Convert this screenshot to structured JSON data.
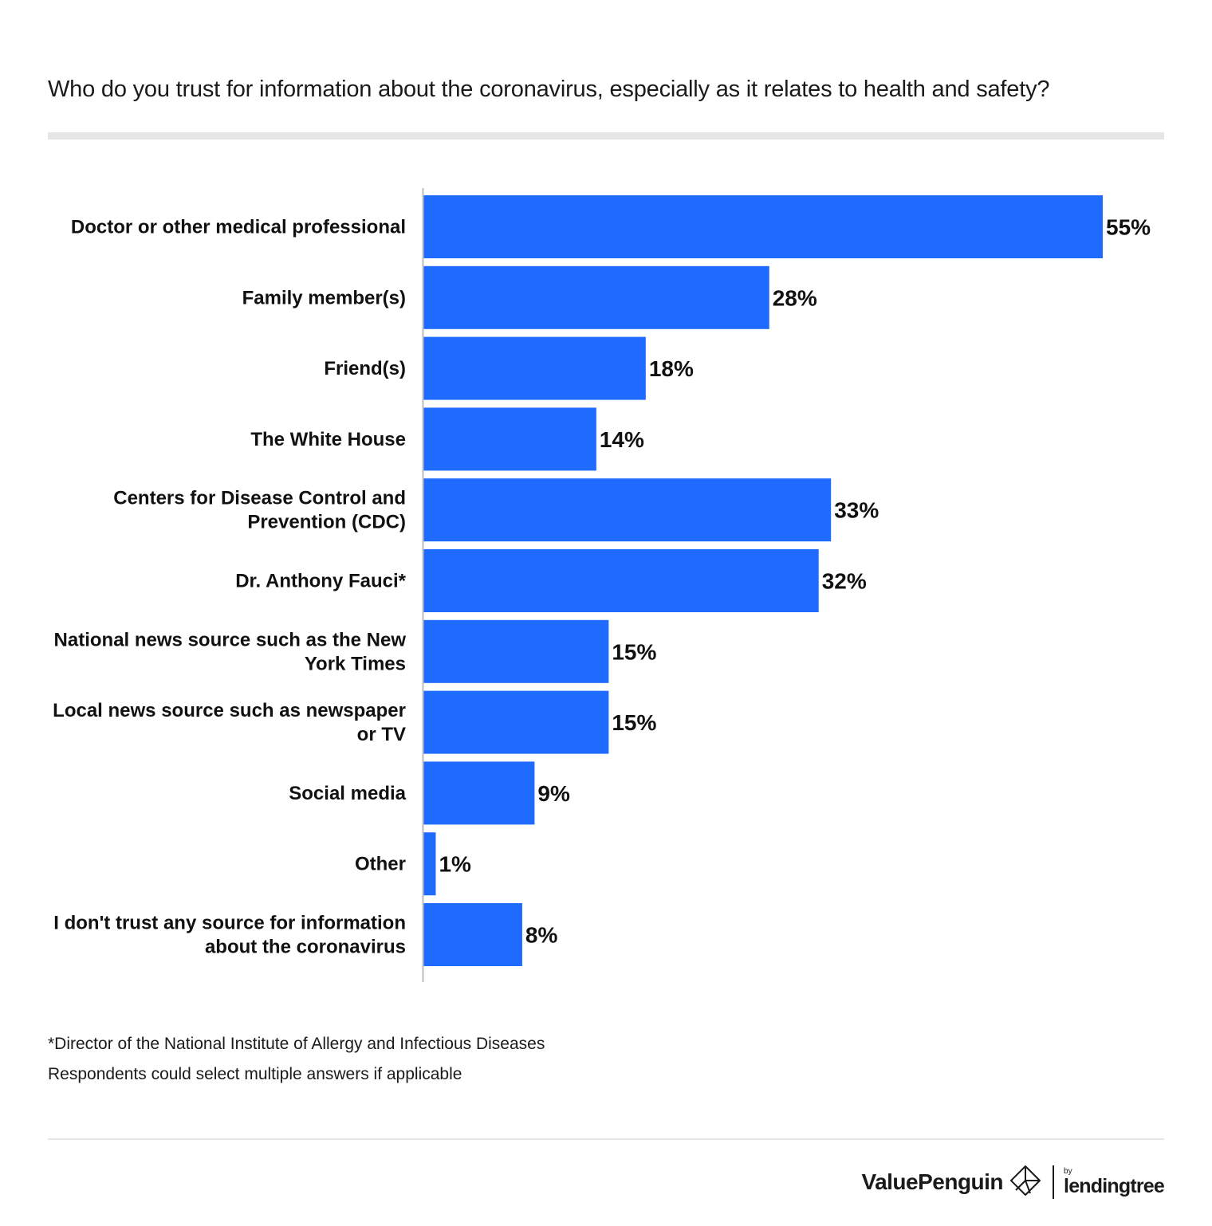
{
  "title": "Who do you trust for information about the coronavirus, especially as it relates to health and safety?",
  "chart_data": {
    "type": "bar",
    "orientation": "horizontal",
    "title": "Who do you trust for information about the coronavirus, especially as it relates to health and safety?",
    "xlabel": "",
    "ylabel": "",
    "xlim": [
      0,
      55
    ],
    "grid": false,
    "bar_color": "#1f6bff",
    "categories": [
      "Doctor or other medical professional",
      "Family member(s)",
      "Friend(s)",
      "The White House",
      "Centers for Disease Control and Prevention (CDC)",
      "Dr. Anthony Fauci*",
      "National news source such as the New York Times",
      "Local news source such as newspaper or TV",
      "Social media",
      "Other",
      "I don't trust any source for information about the coronavirus"
    ],
    "category_lines": [
      [
        "Doctor or other medical professional"
      ],
      [
        "Family member(s)"
      ],
      [
        "Friend(s)"
      ],
      [
        "The White House"
      ],
      [
        "Centers for Disease Control and",
        "Prevention (CDC)"
      ],
      [
        "Dr. Anthony Fauci*"
      ],
      [
        "National news source such as the New",
        "York Times"
      ],
      [
        "Local news source such as newspaper",
        "or TV"
      ],
      [
        "Social media"
      ],
      [
        "Other"
      ],
      [
        "I don't trust any source for information",
        "about the coronavirus"
      ]
    ],
    "values": [
      55,
      28,
      18,
      14,
      33,
      32,
      15,
      15,
      9,
      1,
      8
    ],
    "value_labels": [
      "55%",
      "28%",
      "18%",
      "14%",
      "33%",
      "32%",
      "15%",
      "15%",
      "9%",
      "1%",
      "8%"
    ]
  },
  "footnotes": {
    "note1": "*Director of the National Institute of Allergy and Infectious Diseases",
    "note2": "Respondents could select multiple answers if applicable"
  },
  "branding": {
    "valuepenguin": "ValuePenguin",
    "by": "by",
    "lendingtree": "lendingtree"
  }
}
